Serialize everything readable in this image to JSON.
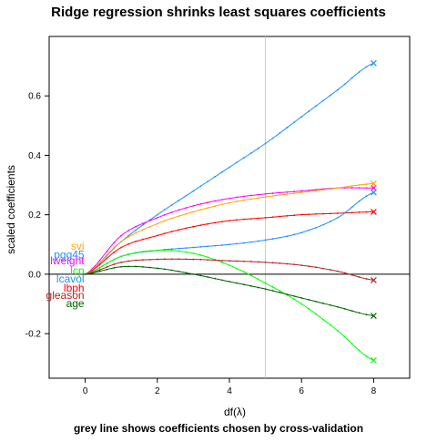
{
  "chart_data": {
    "type": "line",
    "title": "Ridge regression shrinks least squares coefficients",
    "subtitle": "grey line shows coefficients chosen by cross-validation",
    "xlabel": "df(λ)",
    "ylabel": "scaled coefficients",
    "xlim": [
      -1,
      9
    ],
    "ylim": [
      -0.35,
      0.8
    ],
    "x_ticks": [
      0,
      2,
      4,
      6,
      8
    ],
    "y_ticks": [
      -0.2,
      0.0,
      0.2,
      0.4,
      0.6
    ],
    "x_tick_labels": [
      "0",
      "2",
      "4",
      "6",
      "8"
    ],
    "y_tick_labels": [
      "-0.2",
      "0.0",
      "0.2",
      "0.4",
      "0.6"
    ],
    "cv_line_x": 5,
    "zero_line_y": 0,
    "grid": false,
    "x": [
      0,
      1,
      2,
      3,
      4,
      5,
      6,
      7,
      8
    ],
    "series": [
      {
        "name": "lcavol",
        "color": "#1e90ff",
        "values": [
          0,
          0.11,
          0.2,
          0.28,
          0.36,
          0.44,
          0.53,
          0.62,
          0.71
        ]
      },
      {
        "name": "lweight",
        "color": "#ff00ff",
        "values": [
          0,
          0.13,
          0.19,
          0.23,
          0.255,
          0.27,
          0.28,
          0.29,
          0.29
        ]
      },
      {
        "name": "svi",
        "color": "#ffa500",
        "values": [
          0,
          0.11,
          0.17,
          0.21,
          0.24,
          0.26,
          0.275,
          0.29,
          0.305
        ]
      },
      {
        "name": "lbph",
        "color": "#ff0000",
        "values": [
          0,
          0.09,
          0.13,
          0.16,
          0.18,
          0.19,
          0.2,
          0.205,
          0.21
        ]
      },
      {
        "name": "pgg45",
        "color": "#1e90ff",
        "values": [
          0,
          0.06,
          0.08,
          0.09,
          0.1,
          0.115,
          0.14,
          0.19,
          0.275
        ]
      },
      {
        "name": "lcp",
        "color": "#00ff00",
        "values": [
          0,
          0.06,
          0.08,
          0.07,
          0.03,
          -0.03,
          -0.1,
          -0.19,
          -0.29
        ]
      },
      {
        "name": "gleason",
        "color": "#b22222",
        "values": [
          0,
          0.04,
          0.05,
          0.05,
          0.045,
          0.04,
          0.03,
          0.01,
          -0.02
        ]
      },
      {
        "name": "age",
        "color": "#006400",
        "values": [
          0,
          0.025,
          0.02,
          0.0,
          -0.025,
          -0.05,
          -0.08,
          -0.11,
          -0.14
        ]
      }
    ],
    "labels": [
      {
        "text": "svi",
        "color": "#ffa500",
        "y": 0.095
      },
      {
        "text": "pgg45",
        "color": "#1e90ff",
        "y": 0.065
      },
      {
        "text": "lweight",
        "color": "#ff00ff",
        "y": 0.045
      },
      {
        "text": "lcp",
        "color": "#00ff00",
        "y": 0.012
      },
      {
        "text": "lcavol",
        "color": "#1e90ff",
        "y": -0.016
      },
      {
        "text": "lbph",
        "color": "#ff0000",
        "y": -0.046
      },
      {
        "text": "gleason",
        "color": "#b22222",
        "y": -0.071
      },
      {
        "text": "age",
        "color": "#006400",
        "y": -0.099
      }
    ]
  }
}
